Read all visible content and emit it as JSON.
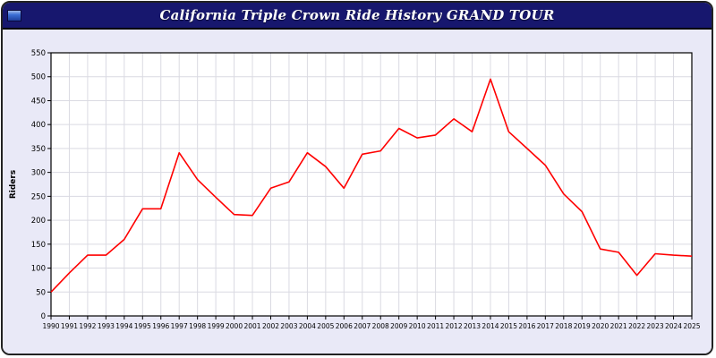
{
  "window": {
    "title": "California Triple Crown Ride History GRAND TOUR"
  },
  "colors": {
    "titlebar_bg": "#17176e",
    "title_text": "#ffffff",
    "panel_bg": "#e9e9f7",
    "plot_bg": "#ffffff",
    "gridline": "#dadae2",
    "axis": "#000000",
    "line": "#ff0000"
  },
  "chart_data": {
    "type": "line",
    "title": "California Triple Crown Ride History GRAND TOUR",
    "xlabel": "",
    "ylabel": "Riders",
    "ylim": [
      0,
      550
    ],
    "ytick_step": 50,
    "grid": true,
    "legend_position": "none",
    "x": [
      1990,
      1991,
      1992,
      1993,
      1994,
      1995,
      1996,
      1997,
      1998,
      1999,
      2000,
      2001,
      2002,
      2003,
      2004,
      2005,
      2006,
      2007,
      2008,
      2009,
      2010,
      2011,
      2012,
      2013,
      2014,
      2015,
      2016,
      2017,
      2018,
      2019,
      2020,
      2021,
      2022,
      2023,
      2024,
      2025
    ],
    "series": [
      {
        "name": "Riders",
        "color": "#ff0000",
        "values": [
          50,
          90,
          127,
          127,
          160,
          224,
          224,
          341,
          285,
          248,
          212,
          210,
          267,
          280,
          341,
          312,
          267,
          338,
          345,
          392,
          372,
          378,
          412,
          385,
          495,
          385,
          350,
          315,
          255,
          218,
          140,
          133,
          85,
          130,
          127,
          125
        ]
      }
    ]
  }
}
